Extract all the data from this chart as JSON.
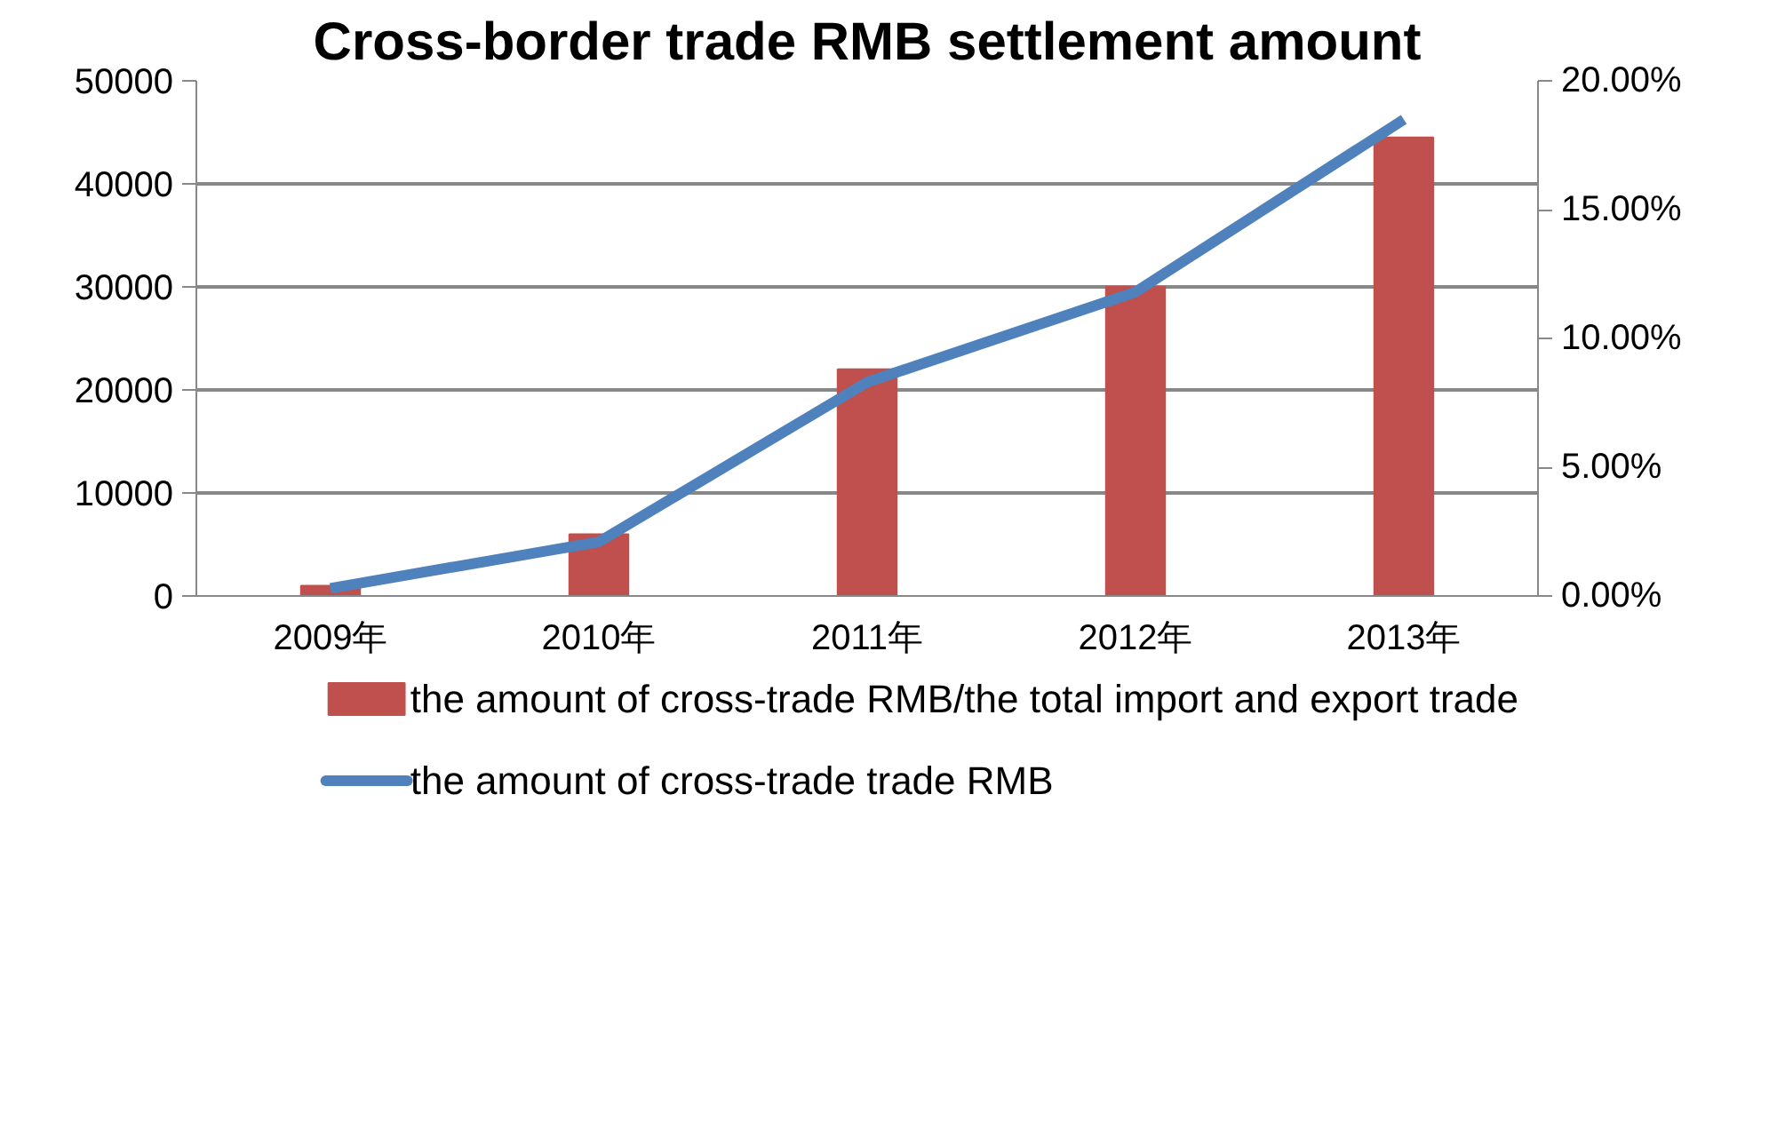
{
  "chart_data": {
    "type": "bar",
    "title": "Cross-border trade RMB settlement amount",
    "categories": [
      "2009年",
      "2010年",
      "2011年",
      "2012年",
      "2013年"
    ],
    "series": [
      {
        "name": "the amount of cross-trade RMB/the total import and export trade",
        "color": "#c0504d",
        "values": [
          1000,
          6000,
          22000,
          30000,
          44500
        ]
      },
      {
        "name": "the amount of cross-trade trade RMB",
        "type": "line",
        "axis": "y2",
        "color": "#4f81bd",
        "values": [
          0.3,
          2.1,
          8.3,
          11.8,
          18.5
        ]
      }
    ],
    "ylim": [
      0,
      50000
    ],
    "yticks": [
      0,
      10000,
      20000,
      30000,
      40000,
      50000
    ],
    "y2lim": [
      0,
      20
    ],
    "y2ticks": [
      {
        "value": 0,
        "label": "0.00%"
      },
      {
        "value": 5,
        "label": "5.00%"
      },
      {
        "value": 10,
        "label": "10.00%"
      },
      {
        "value": 15,
        "label": "15.00%"
      },
      {
        "value": 20,
        "label": "20.00%"
      }
    ],
    "grid": "y",
    "legend": "bottom",
    "marker": "none",
    "line_style": "solid"
  }
}
